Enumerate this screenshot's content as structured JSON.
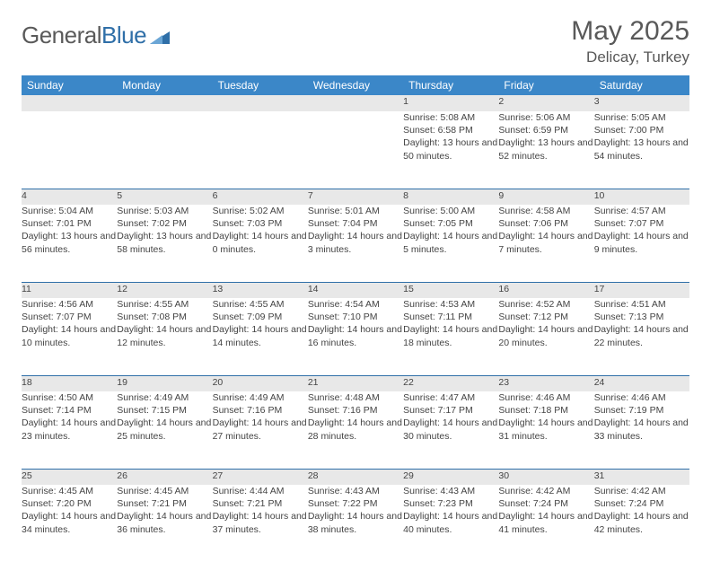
{
  "logo": {
    "text1": "General",
    "text2": "Blue"
  },
  "header": {
    "title": "May 2025",
    "subtitle": "Delicay, Turkey"
  },
  "colors": {
    "header_bg": "#3b87c8",
    "grid_line": "#2f6fa8",
    "daynum_bg": "#e8e8e8",
    "text": "#444444",
    "title_text": "#595959"
  },
  "daysOfWeek": [
    "Sunday",
    "Monday",
    "Tuesday",
    "Wednesday",
    "Thursday",
    "Friday",
    "Saturday"
  ],
  "weeks": [
    [
      null,
      null,
      null,
      null,
      {
        "n": "1",
        "sunrise": "5:08 AM",
        "sunset": "6:58 PM",
        "day": "13 hours and 50 minutes."
      },
      {
        "n": "2",
        "sunrise": "5:06 AM",
        "sunset": "6:59 PM",
        "day": "13 hours and 52 minutes."
      },
      {
        "n": "3",
        "sunrise": "5:05 AM",
        "sunset": "7:00 PM",
        "day": "13 hours and 54 minutes."
      }
    ],
    [
      {
        "n": "4",
        "sunrise": "5:04 AM",
        "sunset": "7:01 PM",
        "day": "13 hours and 56 minutes."
      },
      {
        "n": "5",
        "sunrise": "5:03 AM",
        "sunset": "7:02 PM",
        "day": "13 hours and 58 minutes."
      },
      {
        "n": "6",
        "sunrise": "5:02 AM",
        "sunset": "7:03 PM",
        "day": "14 hours and 0 minutes."
      },
      {
        "n": "7",
        "sunrise": "5:01 AM",
        "sunset": "7:04 PM",
        "day": "14 hours and 3 minutes."
      },
      {
        "n": "8",
        "sunrise": "5:00 AM",
        "sunset": "7:05 PM",
        "day": "14 hours and 5 minutes."
      },
      {
        "n": "9",
        "sunrise": "4:58 AM",
        "sunset": "7:06 PM",
        "day": "14 hours and 7 minutes."
      },
      {
        "n": "10",
        "sunrise": "4:57 AM",
        "sunset": "7:07 PM",
        "day": "14 hours and 9 minutes."
      }
    ],
    [
      {
        "n": "11",
        "sunrise": "4:56 AM",
        "sunset": "7:07 PM",
        "day": "14 hours and 10 minutes."
      },
      {
        "n": "12",
        "sunrise": "4:55 AM",
        "sunset": "7:08 PM",
        "day": "14 hours and 12 minutes."
      },
      {
        "n": "13",
        "sunrise": "4:55 AM",
        "sunset": "7:09 PM",
        "day": "14 hours and 14 minutes."
      },
      {
        "n": "14",
        "sunrise": "4:54 AM",
        "sunset": "7:10 PM",
        "day": "14 hours and 16 minutes."
      },
      {
        "n": "15",
        "sunrise": "4:53 AM",
        "sunset": "7:11 PM",
        "day": "14 hours and 18 minutes."
      },
      {
        "n": "16",
        "sunrise": "4:52 AM",
        "sunset": "7:12 PM",
        "day": "14 hours and 20 minutes."
      },
      {
        "n": "17",
        "sunrise": "4:51 AM",
        "sunset": "7:13 PM",
        "day": "14 hours and 22 minutes."
      }
    ],
    [
      {
        "n": "18",
        "sunrise": "4:50 AM",
        "sunset": "7:14 PM",
        "day": "14 hours and 23 minutes."
      },
      {
        "n": "19",
        "sunrise": "4:49 AM",
        "sunset": "7:15 PM",
        "day": "14 hours and 25 minutes."
      },
      {
        "n": "20",
        "sunrise": "4:49 AM",
        "sunset": "7:16 PM",
        "day": "14 hours and 27 minutes."
      },
      {
        "n": "21",
        "sunrise": "4:48 AM",
        "sunset": "7:16 PM",
        "day": "14 hours and 28 minutes."
      },
      {
        "n": "22",
        "sunrise": "4:47 AM",
        "sunset": "7:17 PM",
        "day": "14 hours and 30 minutes."
      },
      {
        "n": "23",
        "sunrise": "4:46 AM",
        "sunset": "7:18 PM",
        "day": "14 hours and 31 minutes."
      },
      {
        "n": "24",
        "sunrise": "4:46 AM",
        "sunset": "7:19 PM",
        "day": "14 hours and 33 minutes."
      }
    ],
    [
      {
        "n": "25",
        "sunrise": "4:45 AM",
        "sunset": "7:20 PM",
        "day": "14 hours and 34 minutes."
      },
      {
        "n": "26",
        "sunrise": "4:45 AM",
        "sunset": "7:21 PM",
        "day": "14 hours and 36 minutes."
      },
      {
        "n": "27",
        "sunrise": "4:44 AM",
        "sunset": "7:21 PM",
        "day": "14 hours and 37 minutes."
      },
      {
        "n": "28",
        "sunrise": "4:43 AM",
        "sunset": "7:22 PM",
        "day": "14 hours and 38 minutes."
      },
      {
        "n": "29",
        "sunrise": "4:43 AM",
        "sunset": "7:23 PM",
        "day": "14 hours and 40 minutes."
      },
      {
        "n": "30",
        "sunrise": "4:42 AM",
        "sunset": "7:24 PM",
        "day": "14 hours and 41 minutes."
      },
      {
        "n": "31",
        "sunrise": "4:42 AM",
        "sunset": "7:24 PM",
        "day": "14 hours and 42 minutes."
      }
    ]
  ],
  "labels": {
    "sunrise": "Sunrise: ",
    "sunset": "Sunset: ",
    "daylight": "Daylight: "
  }
}
